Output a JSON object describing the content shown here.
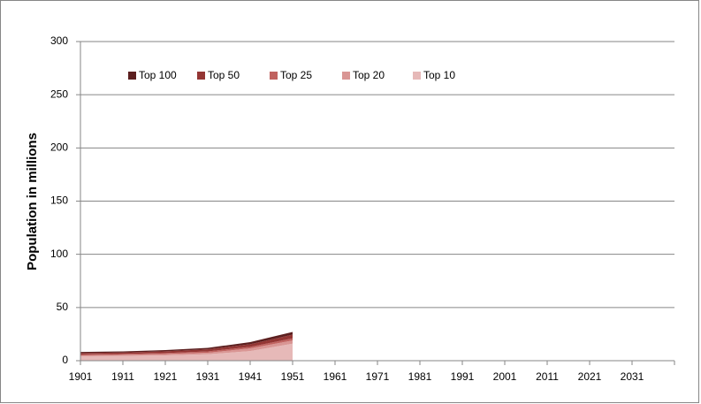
{
  "chart_data": {
    "type": "stacked_area",
    "y_label": "Population in millions",
    "x": [
      1901,
      1911,
      1921,
      1931,
      1941,
      1951
    ],
    "series": [
      {
        "name": "Top 100",
        "color": "#5c1f1f",
        "values": [
          1,
          1,
          1.2,
          1.3,
          2,
          2.5
        ]
      },
      {
        "name": "Top 50",
        "color": "#943634",
        "values": [
          1.4,
          1.4,
          1.6,
          2,
          2.5,
          3.5
        ]
      },
      {
        "name": "Top 25",
        "color": "#c0625f",
        "values": [
          0.8,
          0.8,
          1,
          1.2,
          1.5,
          2
        ]
      },
      {
        "name": "Top 20",
        "color": "#d99694",
        "values": [
          1,
          1,
          1.2,
          1.5,
          2.5,
          3
        ]
      },
      {
        "name": "Top 10",
        "color": "#e6b9b8",
        "values": [
          4,
          4.5,
          5,
          6,
          9,
          16
        ]
      }
    ],
    "xlim": [
      1901,
      2041
    ],
    "xticks": [
      1901,
      1911,
      1921,
      1931,
      1941,
      1951,
      1961,
      1971,
      1981,
      1991,
      2001,
      2011,
      2021,
      2031
    ],
    "ylim": [
      0,
      300
    ],
    "yticks": [
      0,
      50,
      100,
      150,
      200,
      250,
      300
    ],
    "grid": true,
    "legend": "top"
  }
}
